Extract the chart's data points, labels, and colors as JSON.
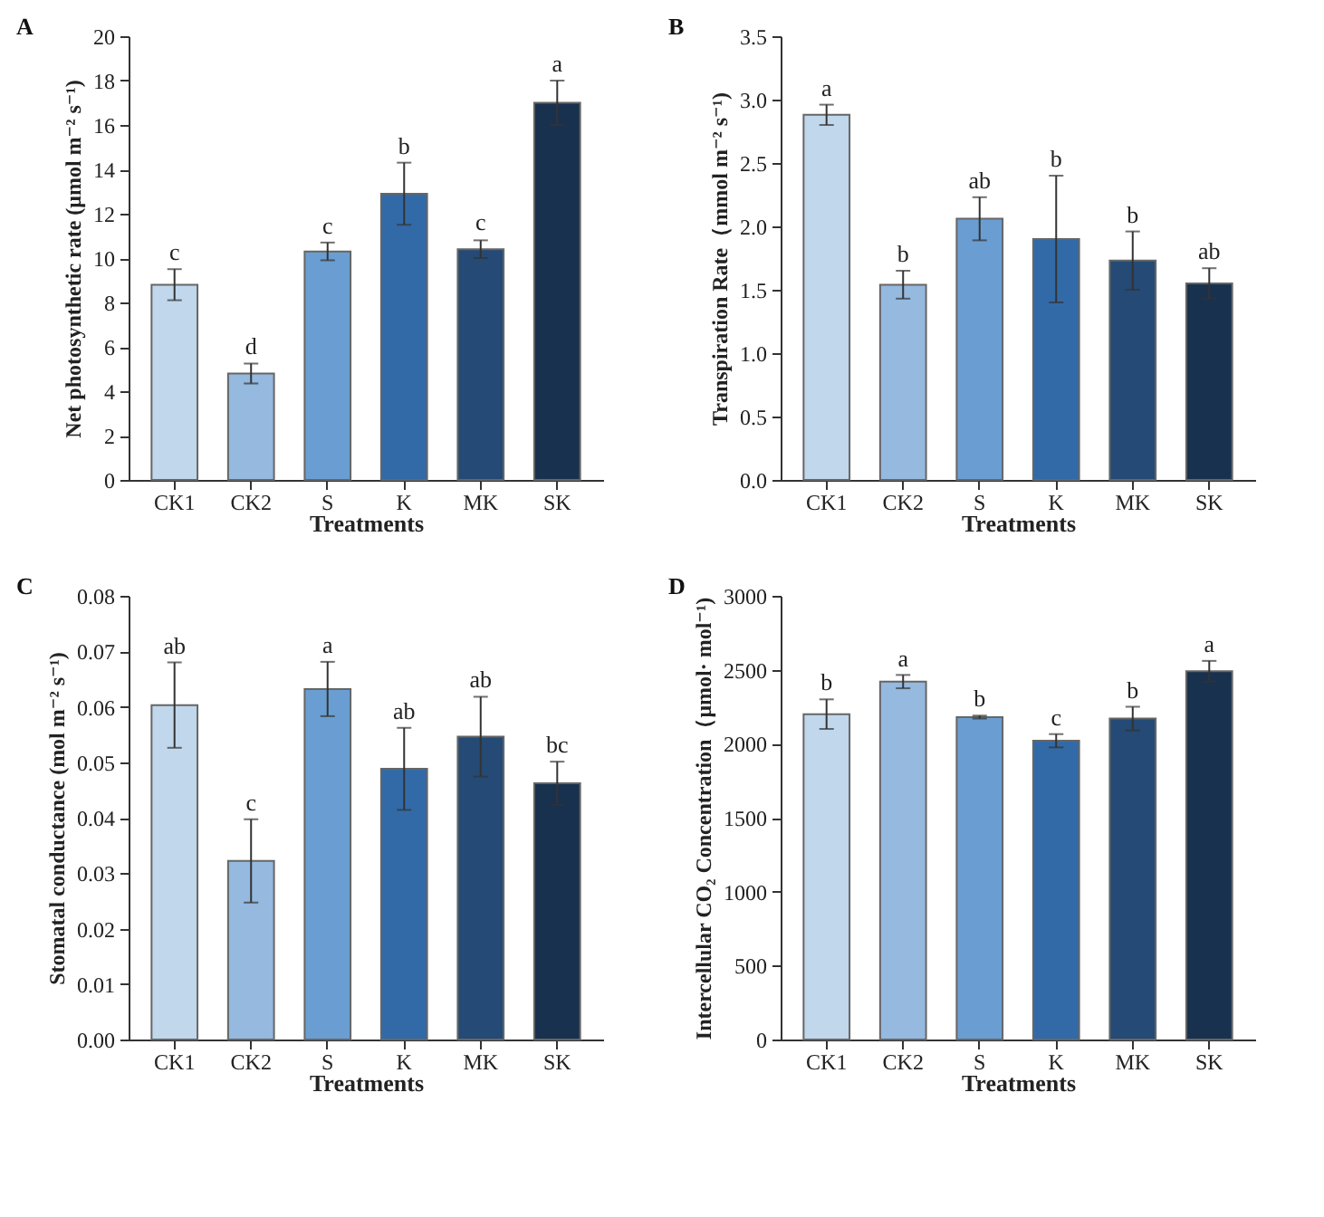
{
  "chart_data": [
    {
      "type": "bar",
      "title": "A",
      "xlabel": "Treatments",
      "ylabel": "Net photosynthetic rate (μmol m⁻² s⁻¹)",
      "categories": [
        "CK1",
        "CK2",
        "S",
        "K",
        "MK",
        "SK"
      ],
      "values": [
        8.8,
        4.8,
        10.3,
        12.9,
        10.4,
        17.0
      ],
      "errors": [
        0.7,
        0.45,
        0.4,
        1.4,
        0.4,
        1.0
      ],
      "colors": [
        "#c0d7ec",
        "#95b9df",
        "#6a9ed2",
        "#326aa7",
        "#244a75",
        "#18314e"
      ],
      "ylim": [
        0,
        20
      ],
      "yticks": [
        0,
        2,
        4,
        6,
        8,
        10,
        12,
        14,
        16,
        18,
        20
      ],
      "annotations": [
        {
          "text": "c",
          "x": "CK1",
          "y": 9.5
        },
        {
          "text": "d",
          "x": "CK2",
          "y": 5.25
        },
        {
          "text": "c",
          "x": "S",
          "y": 10.7
        },
        {
          "text": "b",
          "x": "K",
          "y": 14.3
        },
        {
          "text": "c",
          "x": "MK",
          "y": 10.85
        },
        {
          "text": "a",
          "x": "SK",
          "y": 18.0
        }
      ]
    },
    {
      "type": "bar",
      "title": "B",
      "xlabel": "Treatments",
      "ylabel": "Transpiration Rate（mmol m⁻² s⁻¹)",
      "categories": [
        "CK1",
        "CK2",
        "S",
        "K",
        "MK",
        "SK"
      ],
      "values": [
        2.88,
        1.54,
        2.06,
        1.9,
        1.73,
        1.55
      ],
      "errors": [
        0.08,
        0.11,
        0.17,
        0.5,
        0.23,
        0.12
      ],
      "colors": [
        "#c0d7ec",
        "#95b9df",
        "#6a9ed2",
        "#326aa7",
        "#244a75",
        "#18314e"
      ],
      "ylim": [
        0,
        3.5
      ],
      "yticks": [
        {
          "value": 0,
          "label": "0.0"
        },
        {
          "value": 0.5,
          "label": "0.5"
        },
        {
          "value": 1,
          "label": "1.0"
        },
        {
          "value": 1.5,
          "label": "1.5"
        },
        {
          "value": 2,
          "label": "2.0"
        },
        {
          "value": 2.5,
          "label": "2.5"
        },
        {
          "value": 3,
          "label": "3.0"
        },
        {
          "value": 3.5,
          "label": "3.5"
        }
      ],
      "annotations": [
        {
          "text": "a",
          "x": "CK1",
          "y": 2.96
        },
        {
          "text": "b",
          "x": "CK2",
          "y": 1.65
        },
        {
          "text": "ab",
          "x": "S",
          "y": 2.23
        },
        {
          "text": "b",
          "x": "K",
          "y": 2.4
        },
        {
          "text": "b",
          "x": "MK",
          "y": 1.96
        },
        {
          "text": "ab",
          "x": "SK",
          "y": 1.67
        }
      ]
    },
    {
      "type": "bar",
      "title": "C",
      "xlabel": "Treatments",
      "ylabel": "Stomatal conductance (mol  m⁻² s⁻¹)",
      "categories": [
        "CK1",
        "CK2",
        "S",
        "K",
        "MK",
        "SK"
      ],
      "values": [
        0.0603,
        0.0322,
        0.0632,
        0.0488,
        0.0546,
        0.0462
      ],
      "errors": [
        0.0077,
        0.0075,
        0.0049,
        0.0074,
        0.0072,
        0.0039
      ],
      "colors": [
        "#c0d7ec",
        "#95b9df",
        "#6a9ed2",
        "#326aa7",
        "#244a75",
        "#18314e"
      ],
      "ylim": [
        0,
        0.08
      ],
      "yticks": [
        {
          "value": 0,
          "label": "0.00"
        },
        {
          "value": 0.01,
          "label": "0.01"
        },
        {
          "value": 0.02,
          "label": "0.02"
        },
        {
          "value": 0.03,
          "label": "0.03"
        },
        {
          "value": 0.04,
          "label": "0.04"
        },
        {
          "value": 0.05,
          "label": "0.05"
        },
        {
          "value": 0.06,
          "label": "0.06"
        },
        {
          "value": 0.07,
          "label": "0.07"
        },
        {
          "value": 0.08,
          "label": "0.08"
        }
      ],
      "annotations": [
        {
          "text": "ab",
          "x": "CK1",
          "y": 0.068
        },
        {
          "text": "c",
          "x": "CK2",
          "y": 0.0397
        },
        {
          "text": "a",
          "x": "S",
          "y": 0.0681
        },
        {
          "text": "ab",
          "x": "K",
          "y": 0.0562
        },
        {
          "text": "ab",
          "x": "MK",
          "y": 0.0618
        },
        {
          "text": "bc",
          "x": "SK",
          "y": 0.0501
        }
      ]
    },
    {
      "type": "bar",
      "title": "D",
      "xlabel": "Treatments",
      "ylabel": "Intercellular CO₂ Concentration（μmol· mol⁻¹)",
      "categories": [
        "CK1",
        "CK2",
        "S",
        "K",
        "MK",
        "SK"
      ],
      "values": [
        2200,
        2420,
        2180,
        2020,
        2170,
        2490
      ],
      "errors": [
        100,
        45,
        10,
        45,
        80,
        70
      ],
      "colors": [
        "#c0d7ec",
        "#95b9df",
        "#6a9ed2",
        "#326aa7",
        "#244a75",
        "#18314e"
      ],
      "ylim": [
        0,
        3000
      ],
      "yticks": [
        0,
        500,
        1000,
        1500,
        2000,
        2500,
        3000
      ],
      "annotations": [
        {
          "text": "b",
          "x": "CK1",
          "y": 2305
        },
        {
          "text": "a",
          "x": "CK2",
          "y": 2460
        },
        {
          "text": "b",
          "x": "S",
          "y": 2190
        },
        {
          "text": "c",
          "x": "K",
          "y": 2063
        },
        {
          "text": "b",
          "x": "MK",
          "y": 2250
        },
        {
          "text": "a",
          "x": "SK",
          "y": 2560
        }
      ]
    }
  ]
}
